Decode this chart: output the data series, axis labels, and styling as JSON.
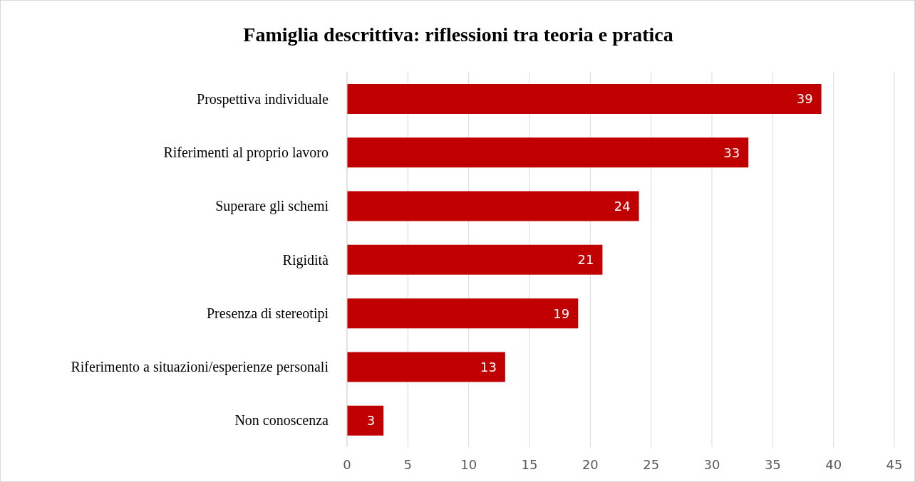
{
  "chart_data": {
    "type": "bar",
    "orientation": "horizontal",
    "title": "Famiglia descrittiva: riflessioni tra teoria e pratica",
    "categories": [
      "Prospettiva individuale",
      "Riferimenti al proprio lavoro",
      "Superare gli schemi",
      "Rigidità",
      "Presenza di stereotipi",
      "Riferimento a situazioni/esperienze personali",
      "Non conoscenza"
    ],
    "values": [
      39,
      33,
      24,
      21,
      19,
      13,
      3
    ],
    "color": "#c00000",
    "xlim": [
      0,
      45
    ],
    "xticks": [
      0,
      5,
      10,
      15,
      20,
      25,
      30,
      35,
      40,
      45
    ],
    "grid": "x",
    "data_labels": true
  }
}
